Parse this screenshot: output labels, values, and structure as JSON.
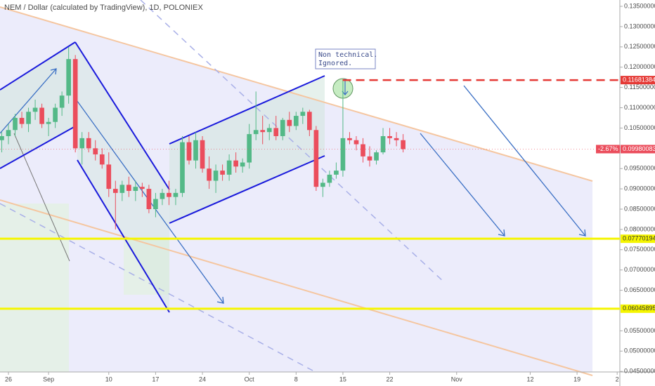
{
  "chart_data": {
    "type": "candlestick",
    "title": "NEM / Dollar (calculated by TradingView), 1D, POLONIEX",
    "x": [
      -1,
      0,
      1,
      2,
      3,
      4,
      5,
      6,
      7,
      8,
      9,
      10,
      11,
      12,
      13,
      14,
      15,
      16,
      17,
      18,
      19,
      20,
      21,
      22,
      23,
      24,
      25,
      26,
      27,
      28,
      29,
      30,
      31,
      32,
      33,
      34,
      35,
      36,
      37,
      38,
      39,
      40,
      41,
      42,
      43,
      44,
      45,
      46,
      47,
      48,
      49,
      50,
      51,
      52,
      53,
      54,
      55,
      56,
      57,
      58,
      59
    ],
    "open": [
      0.102,
      0.103,
      0.1045,
      0.1075,
      0.106,
      0.109,
      0.11,
      0.106,
      0.1065,
      0.11,
      0.113,
      0.122,
      0.1,
      0.1025,
      0.1,
      0.0985,
      0.096,
      0.09,
      0.089,
      0.091,
      0.0895,
      0.0905,
      0.09,
      0.085,
      0.0875,
      0.089,
      0.088,
      0.089,
      0.1015,
      0.097,
      0.102,
      0.095,
      0.092,
      0.0945,
      0.0935,
      0.097,
      0.0955,
      0.0965,
      0.1035,
      0.1045,
      0.104,
      0.105,
      0.103,
      0.107,
      0.1055,
      0.108,
      0.109,
      0.1045,
      0.0905,
      0.0915,
      0.0935,
      0.0945,
      0.1025,
      0.102,
      0.101,
      0.098,
      0.097,
      0.099,
      0.103,
      0.1025,
      0.102
    ],
    "high": [
      0.104,
      0.106,
      0.1085,
      0.109,
      0.11,
      0.112,
      0.111,
      0.1075,
      0.111,
      0.114,
      0.125,
      0.123,
      0.104,
      0.104,
      0.102,
      0.1,
      0.099,
      0.092,
      0.092,
      0.093,
      0.092,
      0.0915,
      0.091,
      0.089,
      0.09,
      0.092,
      0.09,
      0.103,
      0.103,
      0.104,
      0.103,
      0.098,
      0.096,
      0.096,
      0.0985,
      0.099,
      0.0975,
      0.106,
      0.114,
      0.108,
      0.106,
      0.108,
      0.1075,
      0.109,
      0.109,
      0.11,
      0.1095,
      0.1055,
      0.0925,
      0.0945,
      0.0965,
      0.117,
      0.104,
      0.103,
      0.1025,
      0.1005,
      0.0995,
      0.105,
      0.105,
      0.104,
      0.1035
    ],
    "low": [
      0.099,
      0.101,
      0.103,
      0.105,
      0.104,
      0.107,
      0.105,
      0.103,
      0.105,
      0.108,
      0.111,
      0.099,
      0.096,
      0.099,
      0.097,
      0.095,
      0.088,
      0.08,
      0.087,
      0.088,
      0.087,
      0.088,
      0.084,
      0.083,
      0.086,
      0.086,
      0.086,
      0.088,
      0.096,
      0.095,
      0.094,
      0.09,
      0.089,
      0.092,
      0.092,
      0.094,
      0.094,
      0.095,
      0.102,
      0.101,
      0.102,
      0.102,
      0.102,
      0.104,
      0.1045,
      0.106,
      0.103,
      0.0895,
      0.088,
      0.0905,
      0.0925,
      0.093,
      0.101,
      0.0995,
      0.0965,
      0.0955,
      0.096,
      0.0985,
      0.101,
      0.1005,
      0.099
    ],
    "close": [
      0.103,
      0.1045,
      0.1075,
      0.106,
      0.109,
      0.11,
      0.106,
      0.1065,
      0.11,
      0.113,
      0.122,
      0.1,
      0.1025,
      0.1,
      0.0985,
      0.096,
      0.09,
      0.089,
      0.091,
      0.0895,
      0.0905,
      0.09,
      0.085,
      0.0875,
      0.089,
      0.088,
      0.089,
      0.1015,
      0.097,
      0.102,
      0.095,
      0.092,
      0.0945,
      0.0935,
      0.097,
      0.0955,
      0.0965,
      0.1035,
      0.1045,
      0.104,
      0.105,
      0.103,
      0.107,
      0.1055,
      0.108,
      0.109,
      0.1045,
      0.0905,
      0.0915,
      0.0935,
      0.0945,
      0.1025,
      0.102,
      0.101,
      0.098,
      0.097,
      0.099,
      0.103,
      0.1025,
      0.102,
      0.09980083
    ],
    "up_color": "#53b987",
    "down_color": "#eb4d5c",
    "xlim": [
      -1.26,
      91.4
    ],
    "xticks": [
      {
        "value": 0,
        "label": "26"
      },
      {
        "value": 6,
        "label": "Sep"
      },
      {
        "value": 15,
        "label": "10"
      },
      {
        "value": 22,
        "label": "17"
      },
      {
        "value": 29,
        "label": "24"
      },
      {
        "value": 36,
        "label": "Oct"
      },
      {
        "value": 43,
        "label": "8"
      },
      {
        "value": 50,
        "label": "15"
      },
      {
        "value": 57,
        "label": "22"
      },
      {
        "value": 67,
        "label": "Nov"
      },
      {
        "value": 78,
        "label": "12"
      },
      {
        "value": 85,
        "label": "19"
      },
      {
        "value": 91,
        "label": "2"
      }
    ],
    "ylim": [
      0.04486,
      0.13656
    ],
    "yticks": [
      {
        "value": 0.135,
        "label": "0.13500000"
      },
      {
        "value": 0.13,
        "label": "0.13000000"
      },
      {
        "value": 0.125,
        "label": "0.12500000"
      },
      {
        "value": 0.12,
        "label": "0.12000000"
      },
      {
        "value": 0.115,
        "label": "0.11500000"
      },
      {
        "value": 0.11,
        "label": "0.11000000"
      },
      {
        "value": 0.105,
        "label": "0.10500000"
      },
      {
        "value": 0.095,
        "label": "0.09500000"
      },
      {
        "value": 0.09,
        "label": "0.09000000"
      },
      {
        "value": 0.085,
        "label": "0.08500000"
      },
      {
        "value": 0.08,
        "label": "0.08000000"
      },
      {
        "value": 0.075,
        "label": "0.07500000"
      },
      {
        "value": 0.07,
        "label": "0.07000000"
      },
      {
        "value": 0.065,
        "label": "0.06500000"
      },
      {
        "value": 0.055,
        "label": "0.05500000"
      },
      {
        "value": 0.05,
        "label": "0.05000000"
      },
      {
        "value": 0.045,
        "label": "0.04500000"
      }
    ],
    "price_lines": [
      {
        "value": 0.11681384,
        "label": "0.11681384",
        "color": "#e53935"
      },
      {
        "value": 0.07770194,
        "label": "0.07770194",
        "color": "#f5f500"
      },
      {
        "value": 0.06045895,
        "label": "0.06045895",
        "color": "#f5f500"
      }
    ],
    "change_label": "-2.67%",
    "annotation": [
      "Non technical.",
      "Ignored."
    ]
  }
}
